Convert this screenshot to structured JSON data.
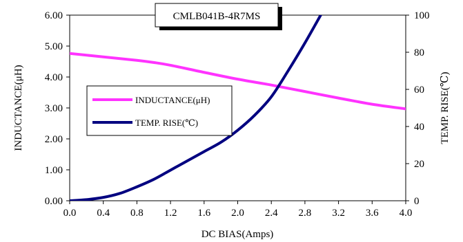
{
  "chart_data": {
    "type": "line",
    "title": "CMLB041B-4R7MS",
    "xlabel": "DC BIAS(Amps)",
    "ylabel": "INDUCTANCE(μH)",
    "y2label": "TEMP. RISE(℃)",
    "xlim": [
      0,
      4.0
    ],
    "ylim": [
      0,
      6.0
    ],
    "y2lim": [
      0,
      100
    ],
    "x_ticks": [
      "0.0",
      "0.4",
      "0.8",
      "1.2",
      "1.6",
      "2.0",
      "2.4",
      "2.8",
      "3.2",
      "3.6",
      "4.0"
    ],
    "y_ticks": [
      "0.00",
      "1.00",
      "2.00",
      "3.00",
      "4.00",
      "5.00",
      "6.00"
    ],
    "y2_ticks": [
      "0",
      "20",
      "40",
      "60",
      "80",
      "100"
    ],
    "grid": false,
    "legend_position": "center-left",
    "series": [
      {
        "name": "INDUCTANCE(μH)",
        "axis": "left",
        "color": "#ff33ff",
        "x": [
          0.0,
          0.4,
          0.8,
          1.0,
          1.2,
          1.6,
          2.0,
          2.4,
          2.8,
          3.2,
          3.6,
          4.0
        ],
        "y": [
          4.76,
          4.65,
          4.54,
          4.47,
          4.38,
          4.15,
          3.93,
          3.74,
          3.53,
          3.32,
          3.12,
          2.97
        ]
      },
      {
        "name": "TEMP. RISE(℃)",
        "axis": "right",
        "color": "#000080",
        "x": [
          0.0,
          0.2,
          0.4,
          0.6,
          0.8,
          1.0,
          1.2,
          1.4,
          1.6,
          1.8,
          2.0,
          2.2,
          2.4,
          2.6,
          2.8,
          3.0
        ],
        "y": [
          0,
          0.6,
          1.8,
          4.0,
          7.5,
          11.5,
          16.5,
          21.5,
          26.5,
          31.5,
          38,
          46,
          56,
          70,
          85,
          101
        ]
      }
    ]
  }
}
